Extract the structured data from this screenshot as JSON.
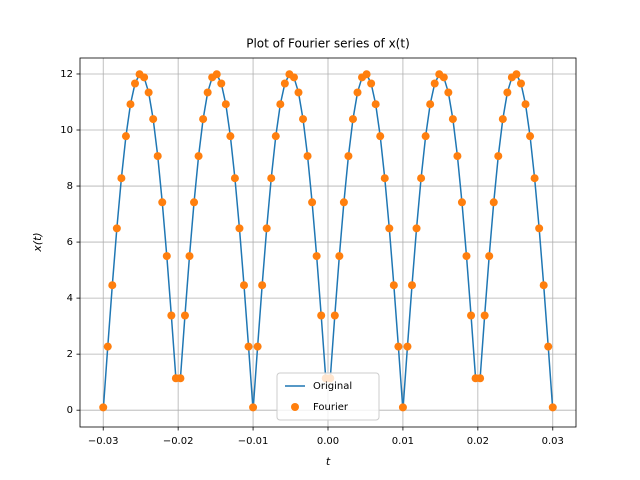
{
  "chart_data": {
    "type": "line",
    "title": "Plot of Fourier series of x(t)",
    "xlabel": "t",
    "ylabel": "x(t)",
    "x": [
      -0.03,
      -0.029394,
      -0.028788,
      -0.028182,
      -0.027576,
      -0.02697,
      -0.026364,
      -0.025758,
      -0.025152,
      -0.024545,
      -0.023939,
      -0.023333,
      -0.022727,
      -0.022121,
      -0.021515,
      -0.020909,
      -0.020303,
      -0.019697,
      -0.019091,
      -0.018485,
      -0.017879,
      -0.017273,
      -0.016667,
      -0.016061,
      -0.015455,
      -0.014848,
      -0.014242,
      -0.013636,
      -0.01303,
      -0.012424,
      -0.011818,
      -0.011212,
      -0.010606,
      -0.01,
      -0.009394,
      -0.008788,
      -0.008182,
      -0.007576,
      -0.00697,
      -0.006364,
      -0.005758,
      -0.005152,
      -0.004545,
      -0.003939,
      -0.003333,
      -0.002727,
      -0.002121,
      -0.001515,
      -0.000909,
      -0.000303,
      0.000303,
      0.000909,
      0.001515,
      0.002121,
      0.002727,
      0.003333,
      0.003939,
      0.004545,
      0.005152,
      0.005758,
      0.006364,
      0.00697,
      0.007576,
      0.008182,
      0.008788,
      0.009394,
      0.01,
      0.010606,
      0.011212,
      0.011818,
      0.012424,
      0.01303,
      0.013636,
      0.014242,
      0.014848,
      0.015455,
      0.016061,
      0.016667,
      0.017273,
      0.017879,
      0.018485,
      0.019091,
      0.019697,
      0.020303,
      0.020909,
      0.021515,
      0.022121,
      0.022727,
      0.023333,
      0.023939,
      0.024545,
      0.025152,
      0.025758,
      0.026364,
      0.02697,
      0.027576,
      0.028182,
      0.028788,
      0.029394,
      0.03
    ],
    "series": [
      {
        "name": "Original",
        "color": "#1f77b4",
        "linestyle": "solid",
        "marker": "none",
        "values": [
          0,
          2.27,
          4.46,
          6.49,
          8.28,
          9.78,
          10.92,
          11.66,
          11.99,
          11.88,
          11.34,
          10.39,
          9.07,
          7.42,
          5.5,
          3.38,
          1.14,
          1.14,
          3.38,
          5.5,
          7.42,
          9.07,
          10.39,
          11.34,
          11.88,
          11.99,
          11.66,
          10.92,
          9.78,
          8.28,
          6.49,
          4.46,
          2.27,
          0,
          2.27,
          4.46,
          6.49,
          8.28,
          9.78,
          10.92,
          11.66,
          11.99,
          11.88,
          11.34,
          10.39,
          9.07,
          7.42,
          5.5,
          3.38,
          1.14,
          1.14,
          3.38,
          5.5,
          7.42,
          9.07,
          10.39,
          11.34,
          11.88,
          11.99,
          11.66,
          10.92,
          9.78,
          8.28,
          6.49,
          4.46,
          2.27,
          0,
          2.27,
          4.46,
          6.49,
          8.28,
          9.78,
          10.92,
          11.66,
          11.99,
          11.88,
          11.34,
          10.39,
          9.07,
          7.42,
          5.5,
          3.38,
          1.14,
          1.14,
          3.38,
          5.5,
          7.42,
          9.07,
          10.39,
          11.34,
          11.88,
          11.99,
          11.66,
          10.92,
          9.78,
          8.28,
          6.49,
          4.46,
          2.27,
          0
        ]
      },
      {
        "name": "Fourier",
        "color": "#ff7f0e",
        "linestyle": "none",
        "marker": "circle",
        "values": [
          0.1,
          2.27,
          4.46,
          6.49,
          8.28,
          9.78,
          10.92,
          11.66,
          11.99,
          11.88,
          11.34,
          10.39,
          9.07,
          7.42,
          5.5,
          3.38,
          1.14,
          1.14,
          3.38,
          5.5,
          7.42,
          9.07,
          10.39,
          11.34,
          11.88,
          11.99,
          11.66,
          10.92,
          9.78,
          8.28,
          6.49,
          4.46,
          2.27,
          0.1,
          2.27,
          4.46,
          6.49,
          8.28,
          9.78,
          10.92,
          11.66,
          11.99,
          11.88,
          11.34,
          10.39,
          9.07,
          7.42,
          5.5,
          3.38,
          1.14,
          1.14,
          3.38,
          5.5,
          7.42,
          9.07,
          10.39,
          11.34,
          11.88,
          11.99,
          11.66,
          10.92,
          9.78,
          8.28,
          6.49,
          4.46,
          2.27,
          0.1,
          2.27,
          4.46,
          6.49,
          8.28,
          9.78,
          10.92,
          11.66,
          11.99,
          11.88,
          11.34,
          10.39,
          9.07,
          7.42,
          5.5,
          3.38,
          1.14,
          1.14,
          3.38,
          5.5,
          7.42,
          9.07,
          10.39,
          11.34,
          11.88,
          11.99,
          11.66,
          10.92,
          9.78,
          8.28,
          6.49,
          4.46,
          2.27,
          0.1
        ]
      }
    ],
    "xlim": [
      -0.0331,
      0.0331
    ],
    "xticks": [
      {
        "value": -0.03,
        "label": "−0.03"
      },
      {
        "value": -0.02,
        "label": "−0.02"
      },
      {
        "value": -0.01,
        "label": "−0.01"
      },
      {
        "value": 0,
        "label": "0.00"
      },
      {
        "value": 0.01,
        "label": "0.01"
      },
      {
        "value": 0.02,
        "label": "0.02"
      },
      {
        "value": 0.03,
        "label": "0.03"
      }
    ],
    "ylim": [
      -0.6,
      12.57
    ],
    "yticks": [
      0,
      2,
      4,
      6,
      8,
      10,
      12
    ],
    "grid": true,
    "legend": "lower center"
  }
}
